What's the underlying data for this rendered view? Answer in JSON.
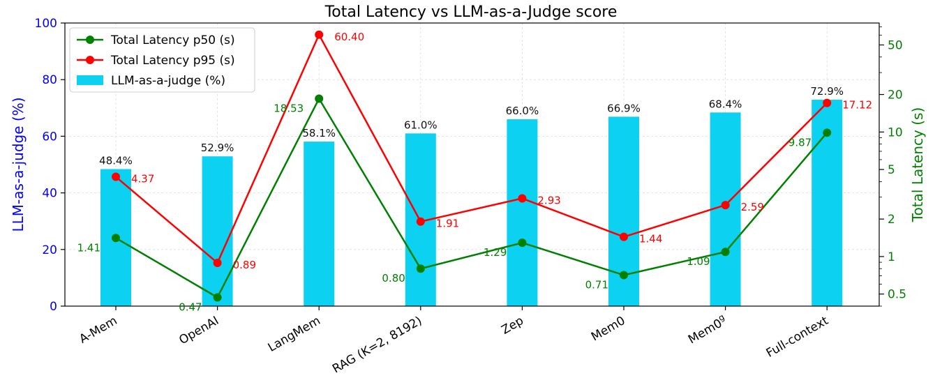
{
  "chart_data": {
    "type": "bar+line",
    "title": "Total Latency vs LLM-as-a-Judge score",
    "categories": [
      "A-Mem",
      "OpenAI",
      "LangMem",
      "RAG (K=2, 8192)",
      "Zep",
      "Mem0",
      "Mem0",
      "Full-context"
    ],
    "category_superscripts": [
      "",
      "",
      "",
      "",
      "",
      "",
      "g",
      ""
    ],
    "left_axis": {
      "label": "LLM-as-a-judge (%)",
      "range": [
        0,
        100
      ],
      "ticks": [
        "0",
        "20",
        "40",
        "60",
        "80",
        "100"
      ],
      "color": "#0000ff"
    },
    "right_axis": {
      "label": "Total Latency (s)",
      "scale": "log",
      "range": [
        0.4,
        75
      ],
      "ticks": [
        "0.5",
        "1",
        "2",
        "5",
        "10",
        "20",
        "50"
      ],
      "color": "#008000"
    },
    "grid": true,
    "legend_position": "top-left",
    "legend": [
      {
        "label": "Total Latency p50 (s)",
        "color": "#008000"
      },
      {
        "label": "Total Latency p95 (s)",
        "color": "#ff0000"
      },
      {
        "label": "LLM-as-a-judge (%)",
        "color": "#0dd1f0"
      }
    ],
    "bars": {
      "name": "LLM-as-a-judge (%)",
      "color": "#0dd1f0",
      "values": [
        48.4,
        52.9,
        58.1,
        61.0,
        66.0,
        66.9,
        68.4,
        72.9
      ],
      "labels": [
        "48.4%",
        "52.9%",
        "58.1%",
        "61.0%",
        "66.0%",
        "66.9%",
        "68.4%",
        "72.9%"
      ]
    },
    "series": [
      {
        "name": "Total Latency p50 (s)",
        "color": "#008000",
        "values": [
          1.41,
          0.47,
          18.53,
          0.8,
          1.29,
          0.71,
          1.09,
          9.87
        ],
        "labels": [
          "1.41",
          "0.47",
          "18.53",
          "0.80",
          "1.29",
          "0.71",
          "1.09",
          "9.87"
        ]
      },
      {
        "name": "Total Latency p95 (s)",
        "color": "#ff0000",
        "values": [
          4.37,
          0.89,
          60.4,
          1.91,
          2.93,
          1.44,
          2.59,
          17.12
        ],
        "labels": [
          "4.37",
          "0.89",
          "60.40",
          "1.91",
          "2.93",
          "1.44",
          "2.59",
          "17.12"
        ]
      }
    ]
  }
}
